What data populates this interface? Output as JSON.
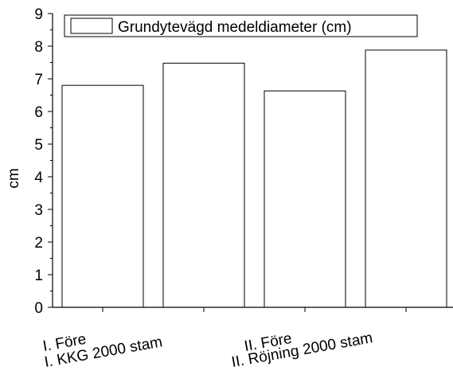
{
  "chart_data": {
    "type": "bar",
    "title": "",
    "xlabel": "",
    "ylabel": "cm",
    "ylim": [
      0,
      9
    ],
    "yticks": [
      0,
      1,
      2,
      3,
      4,
      5,
      6,
      7,
      8,
      9
    ],
    "categories": [
      "I. Före",
      "I. KKG 2000 stam",
      "II. Före",
      "II. Röjning 2000 stam"
    ],
    "series": [
      {
        "name": "Grundytevägd medeldiameter (cm)",
        "values": [
          6.8,
          7.48,
          6.63,
          7.88
        ]
      }
    ],
    "legend_position": "top",
    "grid": false,
    "colors": {
      "bar_fill": "#ffffff",
      "bar_stroke": "#000000"
    }
  }
}
